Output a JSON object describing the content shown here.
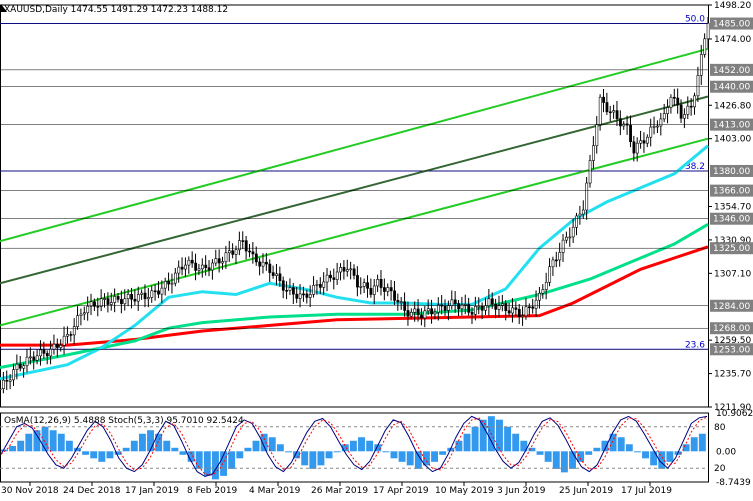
{
  "header": {
    "symbol_line": "XAUUSD,Daily  1474.55 1491.29 1472.23 1488.12",
    "indicator_line": "OsMA(12,26,9) 5.4888   Stoch(5,3,3) 95.7010 92.5424"
  },
  "chart_data": {
    "type": "candlestick",
    "symbol": "XAUUSD",
    "timeframe": "Daily",
    "last_ohlc": {
      "open": 1474.55,
      "high": 1491.29,
      "low": 1472.23,
      "close": 1488.12
    },
    "price_axis": {
      "range": [
        1211.9,
        1498.2
      ],
      "ticks": [
        "1498.20",
        "1474.00",
        "1426.80",
        "1403.00",
        "1354.70",
        "1330.90",
        "1307.10",
        "1259.50",
        "1235.70",
        "1211.90"
      ],
      "highlighted_levels": [
        "1485.00",
        "1452.00",
        "1440.00",
        "1413.00",
        "1380.00",
        "1366.00",
        "1346.00",
        "1325.00",
        "1284.00",
        "1268.00",
        "1253.00"
      ]
    },
    "x_axis_labels": [
      "30 Nov 2018",
      "24 Dec 2018",
      "17 Jan 2019",
      "8 Feb 2019",
      "4 Mar 2019",
      "26 Mar 2019",
      "17 Apr 2019",
      "10 May 2019",
      "3 Jun 2019",
      "25 Jun 2019",
      "17 Jul 2019"
    ],
    "fibonacci_levels": [
      {
        "label": "50.0",
        "price": 1485.0
      },
      {
        "label": "38.2",
        "price": 1380.0
      },
      {
        "label": "23.6",
        "price": 1253.0
      }
    ],
    "series": [
      {
        "color": "#ff0000",
        "values": [
          [
            0,
            1256
          ],
          [
            20,
            1256
          ],
          [
            40,
            1260
          ],
          [
            60,
            1266
          ],
          [
            80,
            1270
          ],
          [
            100,
            1274
          ],
          [
            120,
            1275
          ],
          [
            140,
            1276
          ],
          [
            160,
            1277
          ],
          [
            170,
            1286
          ],
          [
            180,
            1298
          ],
          [
            190,
            1310
          ],
          [
            200,
            1318
          ],
          [
            210,
            1326
          ]
        ]
      },
      {
        "color": "#00e08a",
        "values": [
          [
            0,
            1240
          ],
          [
            20,
            1249
          ],
          [
            40,
            1259
          ],
          [
            50,
            1268
          ],
          [
            60,
            1272
          ],
          [
            80,
            1276
          ],
          [
            100,
            1278
          ],
          [
            120,
            1278
          ],
          [
            140,
            1281
          ],
          [
            160,
            1292
          ],
          [
            175,
            1303
          ],
          [
            190,
            1318
          ],
          [
            200,
            1328
          ],
          [
            210,
            1342
          ]
        ]
      },
      {
        "color": "#22e0f0",
        "values": [
          [
            0,
            1232
          ],
          [
            20,
            1242
          ],
          [
            30,
            1254
          ],
          [
            40,
            1270
          ],
          [
            50,
            1290
          ],
          [
            60,
            1294
          ],
          [
            70,
            1292
          ],
          [
            80,
            1300
          ],
          [
            90,
            1296
          ],
          [
            100,
            1290
          ],
          [
            110,
            1286
          ],
          [
            120,
            1286
          ],
          [
            130,
            1285
          ],
          [
            140,
            1285
          ],
          [
            150,
            1296
          ],
          [
            160,
            1325
          ],
          [
            170,
            1345
          ],
          [
            180,
            1358
          ],
          [
            190,
            1368
          ],
          [
            200,
            1378
          ],
          [
            210,
            1398
          ]
        ]
      },
      {
        "color": "#22cc22",
        "values": [
          [
            0,
            1270
          ],
          [
            210,
            1403
          ]
        ]
      },
      {
        "color": "#22cc22",
        "values": [
          [
            0,
            1330
          ],
          [
            210,
            1467
          ]
        ]
      },
      {
        "color": "#336633",
        "values": [
          [
            0,
            1300
          ],
          [
            210,
            1433
          ]
        ]
      }
    ],
    "close_path": [
      [
        0,
        1225
      ],
      [
        5,
        1240
      ],
      [
        10,
        1248
      ],
      [
        15,
        1252
      ],
      [
        20,
        1262
      ],
      [
        25,
        1282
      ],
      [
        30,
        1287
      ],
      [
        35,
        1288
      ],
      [
        40,
        1290
      ],
      [
        45,
        1292
      ],
      [
        50,
        1300
      ],
      [
        55,
        1315
      ],
      [
        60,
        1310
      ],
      [
        65,
        1316
      ],
      [
        70,
        1325
      ],
      [
        72,
        1330
      ],
      [
        75,
        1318
      ],
      [
        80,
        1310
      ],
      [
        85,
        1295
      ],
      [
        90,
        1290
      ],
      [
        95,
        1300
      ],
      [
        100,
        1307
      ],
      [
        103,
        1312
      ],
      [
        106,
        1300
      ],
      [
        110,
        1295
      ],
      [
        112,
        1300
      ],
      [
        115,
        1295
      ],
      [
        118,
        1288
      ],
      [
        120,
        1280
      ],
      [
        125,
        1278
      ],
      [
        130,
        1282
      ],
      [
        135,
        1286
      ],
      [
        140,
        1280
      ],
      [
        145,
        1286
      ],
      [
        150,
        1282
      ],
      [
        155,
        1278
      ],
      [
        160,
        1290
      ],
      [
        163,
        1310
      ],
      [
        167,
        1328
      ],
      [
        170,
        1340
      ],
      [
        173,
        1355
      ],
      [
        176,
        1400
      ],
      [
        178,
        1430
      ],
      [
        182,
        1420
      ],
      [
        186,
        1410
      ],
      [
        188,
        1395
      ],
      [
        192,
        1405
      ],
      [
        195,
        1415
      ],
      [
        197,
        1418
      ],
      [
        199,
        1435
      ],
      [
        202,
        1420
      ],
      [
        205,
        1425
      ],
      [
        207,
        1448
      ],
      [
        208,
        1460
      ],
      [
        209,
        1475
      ],
      [
        210,
        1488
      ]
    ],
    "osma": [
      0.5,
      1.5,
      3,
      5,
      6,
      7,
      6,
      5,
      3,
      1,
      -1,
      -2,
      -3,
      -2,
      -1,
      1,
      3,
      5,
      6,
      5,
      3,
      1,
      -1,
      -3,
      -5,
      -7,
      -8,
      -7,
      -5,
      -2,
      1,
      3,
      5,
      4,
      2,
      0,
      -2,
      -4,
      -5,
      -4,
      -2,
      0,
      2,
      3,
      4,
      3,
      2,
      0,
      -2,
      -3,
      -4,
      -5,
      -4,
      -3,
      -1,
      1,
      3,
      5,
      7,
      9,
      10,
      9,
      7,
      5,
      3,
      1,
      -1,
      -3,
      -5,
      -6,
      -5,
      -3,
      -1,
      1,
      3,
      5,
      4,
      2,
      0,
      -2,
      -4,
      -5,
      -3,
      -1,
      2,
      4,
      5
    ],
    "stoch": [
      40,
      60,
      80,
      85,
      78,
      60,
      40,
      25,
      20,
      35,
      55,
      75,
      88,
      80,
      60,
      35,
      20,
      15,
      25,
      45,
      70,
      88,
      82,
      60,
      35,
      15,
      8,
      12,
      30,
      55,
      80,
      90,
      85,
      65,
      40,
      22,
      15,
      28,
      50,
      72,
      88,
      92,
      80,
      60,
      40,
      25,
      18,
      30,
      52,
      75,
      90,
      86,
      66,
      42,
      25,
      15,
      20,
      40,
      65,
      85,
      95,
      90,
      70,
      48,
      30,
      20,
      28,
      48,
      70,
      88,
      93,
      82,
      62,
      40,
      22,
      15,
      25,
      48,
      72,
      90,
      95,
      88,
      70,
      50,
      30,
      20,
      35,
      60,
      85,
      93,
      95
    ],
    "osma_range": [
      -8.7439,
      10.9062
    ],
    "osma_ticks": [
      "10.9062",
      "0.00",
      "-8.7439"
    ],
    "stoch_levels": [
      "80",
      "20"
    ]
  }
}
